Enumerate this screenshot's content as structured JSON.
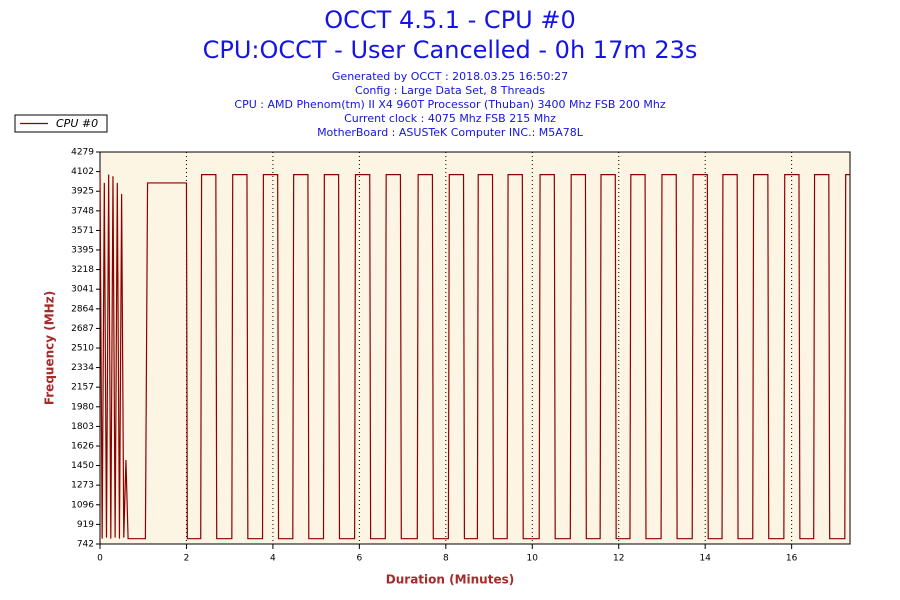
{
  "chart_data": {
    "type": "line",
    "title": "OCCT 4.5.1 - CPU #0",
    "subtitle": "CPU:OCCT - User Cancelled - 0h 17m 23s",
    "info": [
      "Generated by OCCT : 2018.03.25 16:50:27",
      "Config : Large Data Set, 8 Threads",
      "CPU : AMD Phenom(tm) II X4 960T Processor (Thuban) 3400 Mhz FSB 200 Mhz",
      "Current clock : 4075 Mhz FSB 215 Mhz",
      "MotherBoard : ASUSTeK Computer INC.: M5A78L"
    ],
    "xlabel": "Duration (Minutes)",
    "ylabel": "Frequency (MHz)",
    "xlim": [
      0,
      17.35
    ],
    "xticks": [
      0,
      2,
      4,
      6,
      8,
      10,
      12,
      14,
      16
    ],
    "ylim": [
      742,
      4279
    ],
    "yticks": [
      742,
      919,
      1096,
      1273,
      1450,
      1626,
      1803,
      1980,
      2157,
      2334,
      2510,
      2687,
      2864,
      3041,
      3218,
      3395,
      3571,
      3748,
      3925,
      4102,
      4279
    ],
    "grid": true,
    "legend": "top-left",
    "series": [
      {
        "name": "CPU #0",
        "color": "#8b0000",
        "x": [
          0,
          0.05,
          0.1,
          0.15,
          0.2,
          0.25,
          0.3,
          0.35,
          0.4,
          0.45,
          0.5,
          0.55,
          0.6,
          0.65,
          1.05,
          1.1,
          2.0,
          2.02,
          2.33,
          2.35,
          2.68,
          2.7,
          3.05,
          3.07,
          3.4,
          3.42,
          3.76,
          3.78,
          4.11,
          4.13,
          4.46,
          4.48,
          4.81,
          4.83,
          5.17,
          5.19,
          5.52,
          5.54,
          5.89,
          5.91,
          6.24,
          6.26,
          6.6,
          6.62,
          6.95,
          6.97,
          7.34,
          7.36,
          7.69,
          7.71,
          8.06,
          8.08,
          8.41,
          8.43,
          8.73,
          8.75,
          9.08,
          9.1,
          9.42,
          9.44,
          9.77,
          9.79,
          10.16,
          10.18,
          10.51,
          10.53,
          10.88,
          10.9,
          11.23,
          11.25,
          11.57,
          11.59,
          11.92,
          11.94,
          12.26,
          12.28,
          12.61,
          12.63,
          12.98,
          13.0,
          13.33,
          13.35,
          13.7,
          13.72,
          14.05,
          14.07,
          14.39,
          14.41,
          14.74,
          14.76,
          15.1,
          15.12,
          15.45,
          15.47,
          15.82,
          15.84,
          16.17,
          16.19,
          16.51,
          16.53,
          16.86,
          16.88,
          17.23,
          17.25,
          17.35
        ],
        "values": [
          4102,
          790,
          4000,
          800,
          4075,
          790,
          4060,
          800,
          4000,
          790,
          3900,
          800,
          1500,
          790,
          790,
          4000,
          4000,
          790,
          790,
          4075,
          4075,
          790,
          790,
          4075,
          4075,
          790,
          790,
          4075,
          4075,
          790,
          790,
          4075,
          4075,
          790,
          790,
          4075,
          4075,
          790,
          790,
          4075,
          4075,
          790,
          790,
          4075,
          4075,
          790,
          790,
          4075,
          4075,
          790,
          790,
          4075,
          4075,
          790,
          790,
          4075,
          4075,
          790,
          790,
          4075,
          4075,
          790,
          790,
          4075,
          4075,
          790,
          790,
          4075,
          4075,
          790,
          790,
          4075,
          4075,
          790,
          790,
          4075,
          4075,
          790,
          790,
          4075,
          4075,
          790,
          790,
          4075,
          4075,
          790,
          790,
          4075,
          4075,
          790,
          790,
          4075,
          4075,
          790,
          790,
          4075,
          4075,
          790,
          790,
          4075,
          4075,
          790,
          790,
          4075,
          4075
        ]
      }
    ]
  }
}
